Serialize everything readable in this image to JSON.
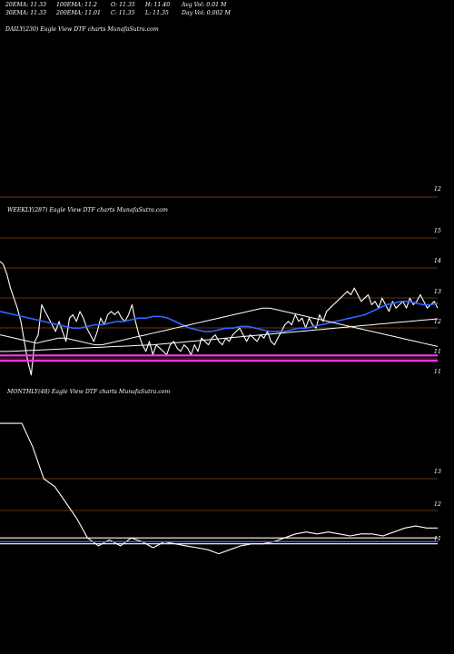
{
  "header": {
    "ema20": "20EMA: 11.33",
    "ema30": "30EMA: 11.33",
    "ema100": "100EMA: 11.2",
    "ema200": "200EMA: 11.01",
    "open": "O: 11.35",
    "close": "C: 11.35",
    "high": "H: 11.40",
    "low": "L: 11.35",
    "avg_vol": "Avg Vol: 0.01 M",
    "day_vol": "Day Vol: 0.002 M"
  },
  "chart_data": [
    {
      "type": "line",
      "panel": "daily",
      "title": "DAILY(230) Eagle View DTF charts MunafaSutra.com",
      "y_ticks": [
        "12"
      ],
      "series": []
    },
    {
      "type": "line",
      "panel": "weekly",
      "title": "WEEKLY(287) Eagle View DTF charts MunafaSutra.com",
      "y_ticks": [
        "15",
        "14",
        "13",
        "12",
        "11",
        "11"
      ],
      "series": [
        {
          "color": "#ffffff",
          "values": [
            14.0,
            13.9,
            13.6,
            13.2,
            12.9,
            12.6,
            12.2,
            11.6,
            11.0,
            10.6,
            11.6,
            11.8,
            12.7,
            12.5,
            12.3,
            12.1,
            11.9,
            12.2,
            11.9,
            11.6,
            12.3,
            12.4,
            12.2,
            12.5,
            12.3,
            12.0,
            11.8,
            11.6,
            11.9,
            12.3,
            12.1,
            12.4,
            12.5,
            12.4,
            12.5,
            12.3,
            12.2,
            12.4,
            12.7,
            12.2,
            11.8,
            11.5,
            11.3,
            11.6,
            11.2,
            11.5,
            11.4,
            11.3,
            11.2,
            11.5,
            11.6,
            11.4,
            11.3,
            11.5,
            11.4,
            11.2,
            11.5,
            11.3,
            11.7,
            11.6,
            11.5,
            11.7,
            11.8,
            11.6,
            11.5,
            11.7,
            11.6,
            11.8,
            11.9,
            12.0,
            11.8,
            11.6,
            11.8,
            11.7,
            11.6,
            11.8,
            11.7,
            11.9,
            11.6,
            11.5,
            11.7,
            11.9,
            12.1,
            12.2,
            12.1,
            12.4,
            12.2,
            12.3,
            12.0,
            12.3,
            12.1,
            12.0,
            12.4,
            12.2,
            12.5,
            12.6,
            12.7,
            12.8,
            12.9,
            13.0,
            13.1,
            13.0,
            13.2,
            13.0,
            12.8,
            12.9,
            13.0,
            12.7,
            12.8,
            12.6,
            12.9,
            12.7,
            12.5,
            12.8,
            12.6,
            12.7,
            12.8,
            12.6,
            12.9,
            12.7,
            12.8,
            13.0,
            12.8,
            12.6,
            12.7,
            12.8,
            12.6
          ]
        },
        {
          "color": "#3366ff",
          "values": [
            12.5,
            12.45,
            12.4,
            12.35,
            12.3,
            12.25,
            12.2,
            12.15,
            12.1,
            12.05,
            12.0,
            12.0,
            12.05,
            12.1,
            12.1,
            12.15,
            12.2,
            12.2,
            12.25,
            12.3,
            12.3,
            12.35,
            12.35,
            12.3,
            12.2,
            12.1,
            12.0,
            11.95,
            11.9,
            11.9,
            11.95,
            12.0,
            12.0,
            12.05,
            12.05,
            12.0,
            11.95,
            11.9,
            11.9,
            11.9,
            11.95,
            12.0,
            12.0,
            12.05,
            12.1,
            12.15,
            12.2,
            12.25,
            12.3,
            12.35,
            12.4,
            12.5,
            12.6,
            12.7,
            12.75,
            12.8,
            12.8,
            12.75,
            12.7,
            12.7,
            12.75
          ]
        },
        {
          "color": "#ffffff",
          "values": [
            11.8,
            11.75,
            11.7,
            11.65,
            11.6,
            11.55,
            11.6,
            11.65,
            11.7,
            11.7,
            11.65,
            11.6,
            11.55,
            11.5,
            11.5,
            11.55,
            11.6,
            11.65,
            11.7,
            11.75,
            11.8,
            11.85,
            11.9,
            11.95,
            12.0,
            12.05,
            12.1,
            12.15,
            12.2,
            12.25,
            12.3,
            12.35,
            12.4,
            12.45,
            12.5,
            12.55,
            12.6,
            12.6,
            12.55,
            12.5,
            12.45,
            12.4,
            12.35,
            12.3,
            12.25,
            12.2,
            12.15,
            12.1,
            12.05,
            12.0,
            11.95,
            11.9,
            11.85,
            11.8,
            11.75,
            11.7,
            11.65,
            11.6,
            11.55,
            11.5,
            11.45
          ]
        },
        {
          "color": "#ffffff",
          "values": [
            11.3,
            11.3,
            11.31,
            11.32,
            11.33,
            11.34,
            11.35,
            11.36,
            11.37,
            11.38,
            11.39,
            11.4,
            11.41,
            11.42,
            11.43,
            11.44,
            11.45,
            11.46,
            11.47,
            11.48,
            11.49,
            11.5,
            11.52,
            11.54,
            11.56,
            11.58,
            11.6,
            11.62,
            11.64,
            11.66,
            11.68,
            11.7,
            11.72,
            11.74,
            11.76,
            11.78,
            11.8,
            11.82,
            11.84,
            11.86,
            11.88,
            11.9,
            11.92,
            11.94,
            11.96,
            11.98,
            12.0,
            12.02,
            12.04,
            12.06,
            12.08,
            12.1,
            12.12,
            12.14,
            12.16,
            12.18,
            12.2,
            12.22,
            12.24,
            12.26,
            12.28
          ]
        },
        {
          "color": "#ff33ff",
          "values": [
            11.18,
            11.18
          ]
        },
        {
          "color": "#ff33ff",
          "values": [
            11.02,
            11.02
          ]
        }
      ]
    },
    {
      "type": "line",
      "panel": "monthly",
      "title": "MONTHLY(48) Eagle View DTF charts MunafaSutra.com",
      "y_ticks": [
        "13",
        "12",
        "11"
      ],
      "series": [
        {
          "color": "#ffffff",
          "values": [
            14.0,
            14.0,
            14.0,
            13.4,
            12.6,
            12.4,
            12.0,
            11.6,
            11.1,
            10.9,
            11.05,
            10.9,
            11.1,
            11.0,
            10.85,
            11.0,
            10.95,
            10.9,
            10.85,
            10.8,
            10.7,
            10.8,
            10.9,
            10.95,
            10.95,
            11.0,
            11.1,
            11.2,
            11.25,
            11.2,
            11.25,
            11.2,
            11.15,
            11.2,
            11.2,
            11.15,
            11.25,
            11.35,
            11.4,
            11.35,
            11.35
          ]
        },
        {
          "color": "#ffffff",
          "values": [
            11.1,
            11.1
          ]
        },
        {
          "color": "#3366ff",
          "values": [
            11.0,
            11.0
          ]
        },
        {
          "color": "#ffffff",
          "values": [
            10.95,
            10.95
          ]
        }
      ]
    }
  ],
  "daily_label": "DAILY(230) Eagle View DTF charts MunafaSutra.com",
  "weekly_label": "WEEKLY(287) Eagle View DTF charts MunafaSutra.com",
  "monthly_label": "MONTHLY(48) Eagle View DTF charts MunafaSutra.com",
  "ticks": {
    "daily": [
      "12"
    ],
    "weekly": [
      "15",
      "14",
      "13",
      "12",
      "11",
      "11"
    ],
    "monthly": [
      "13",
      "12",
      "11"
    ]
  }
}
